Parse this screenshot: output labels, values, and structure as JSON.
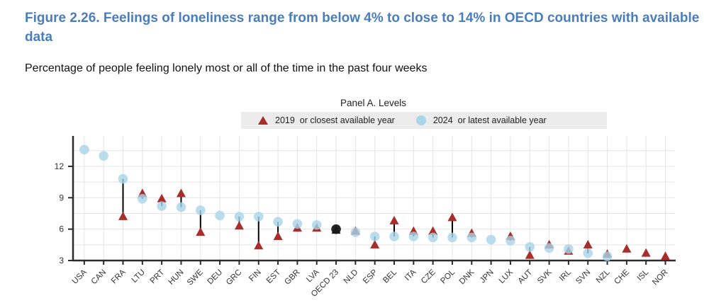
{
  "figure": {
    "title": "Figure 2.26. Feelings of loneliness range from below 4% to close to 14% in OECD countries with available data",
    "subtitle": "Percentage of people feeling lonely most or all of the time in the past four weeks"
  },
  "colors": {
    "title_blue": "#4a7dbe",
    "legend_bar_bg": "#ececec",
    "triangle_red": "#a72e2a",
    "circle_blue": "#a9d5e8",
    "highlight_black": "#1a1a1a",
    "grid_grey": "#e4e4e4",
    "axis_dark": "#2b2b2b"
  },
  "chart_data": {
    "type": "scatter",
    "panel_title": "Panel A. Levels",
    "legend": [
      {
        "label": "2019  or closest available year",
        "marker": "triangle",
        "color": "#a72e2a"
      },
      {
        "label": "2024  or latest available year",
        "marker": "circle",
        "color": "#a9d5e8"
      }
    ],
    "categories": [
      "USA",
      "CAN",
      "FRA",
      "LTU",
      "PRT",
      "HUN",
      "SWE",
      "DEU",
      "GRC",
      "FIN",
      "EST",
      "GBR",
      "LVA",
      "OECD 23",
      "NLD",
      "ESP",
      "BEL",
      "ITA",
      "CZE",
      "POL",
      "DNK",
      "JPN",
      "LUX",
      "AUT",
      "SVK",
      "IRL",
      "SVN",
      "NZL",
      "CHE",
      "ISL",
      "NOR"
    ],
    "series": [
      {
        "name": "2019 or closest available year",
        "marker": "triangle",
        "color": "#a72e2a",
        "values": [
          null,
          null,
          7.2,
          9.4,
          8.9,
          9.4,
          5.7,
          null,
          6.3,
          4.4,
          5.3,
          6.1,
          6.1,
          5.9,
          5.8,
          4.5,
          6.8,
          5.8,
          5.8,
          7.1,
          5.6,
          null,
          5.3,
          3.5,
          4.5,
          3.9,
          4.5,
          3.6,
          4.1,
          3.7,
          3.4
        ]
      },
      {
        "name": "2024 or latest available year",
        "marker": "circle",
        "color": "#a9d5e8",
        "values": [
          13.6,
          13.0,
          10.8,
          8.9,
          8.2,
          8.1,
          7.8,
          7.3,
          7.2,
          7.2,
          6.7,
          6.5,
          6.4,
          6.0,
          5.7,
          5.3,
          5.3,
          5.3,
          5.2,
          5.2,
          5.2,
          5.0,
          4.9,
          4.3,
          4.2,
          4.1,
          3.7,
          3.4,
          null,
          null,
          null
        ]
      }
    ],
    "highlight_category": "OECD 23",
    "highlight_color": "#1a1a1a",
    "connector_color": "#000000",
    "yticks": [
      3,
      6,
      9,
      12
    ],
    "ylim": [
      3,
      14.5
    ],
    "grid_interval": 1.5,
    "grid": true,
    "legend_position": "top",
    "xlabel": "",
    "ylabel": ""
  }
}
